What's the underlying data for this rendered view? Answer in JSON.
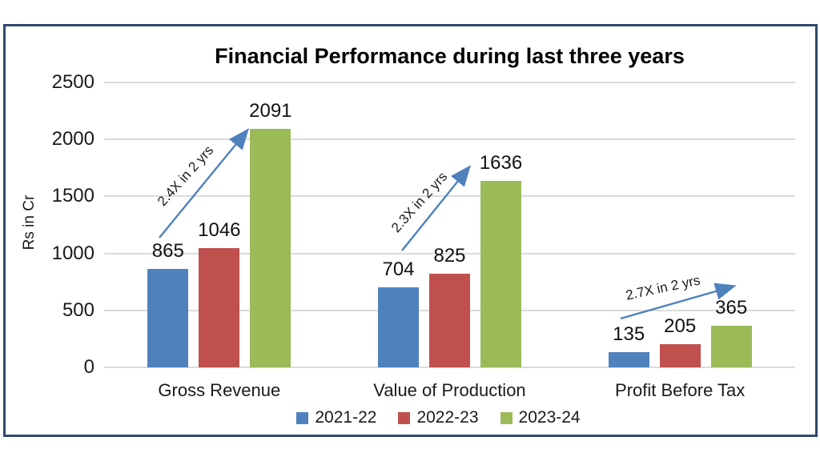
{
  "chart_data": {
    "type": "bar",
    "title": "Financial Performance during last three years",
    "ylabel": "Rs in Cr",
    "xlabel": "",
    "categories": [
      "Gross Revenue",
      "Value of Production",
      "Profit Before Tax"
    ],
    "series": [
      {
        "name": "2021-22",
        "color": "#4F81BD",
        "values": [
          865,
          704,
          135
        ]
      },
      {
        "name": "2022-23",
        "color": "#C0504D",
        "values": [
          1046,
          825,
          205
        ]
      },
      {
        "name": "2023-24",
        "color": "#9BBB59",
        "values": [
          2091,
          1636,
          365
        ]
      }
    ],
    "ylim": [
      0,
      2500
    ],
    "yticks": [
      0,
      500,
      1000,
      1500,
      2000,
      2500
    ],
    "grid": "horizontal-only",
    "legend_position": "bottom",
    "annotations": [
      {
        "text": "2.4X in 2 yrs",
        "category": "Gross Revenue"
      },
      {
        "text": "2.3X in 2 yrs",
        "category": "Value of Production"
      },
      {
        "text": "2.7X in 2 yrs",
        "category": "Profit Before Tax"
      }
    ],
    "colors": {
      "grid_line": "#DBDBDB",
      "frame_border": "#2E4A6B",
      "trend_arrow": "#4F81BD",
      "text": "#1A1A1A"
    }
  }
}
